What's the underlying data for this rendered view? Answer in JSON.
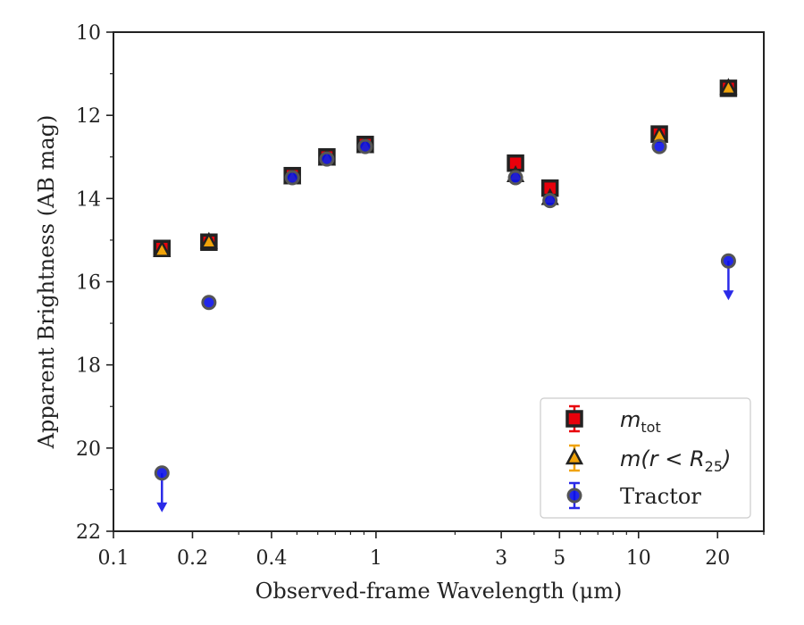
{
  "chart_data": {
    "type": "scatter",
    "xlabel": "Observed-frame Wavelength (μm)",
    "ylabel": "Apparent Brightness (AB mag)",
    "xscale": "log",
    "xlim": [
      0.1,
      30
    ],
    "ylim": [
      22,
      10
    ],
    "y_inverted": true,
    "xticks": [
      0.1,
      0.2,
      0.4,
      1,
      3,
      5,
      10,
      20
    ],
    "xtick_labels": [
      "0.1",
      "0.2",
      "0.4",
      "1",
      "3",
      "5",
      "10",
      "20"
    ],
    "yticks": [
      10,
      12,
      14,
      16,
      18,
      20,
      22
    ],
    "ytick_labels": [
      "10",
      "12",
      "14",
      "16",
      "18",
      "20",
      "22"
    ],
    "grid": false,
    "legend_position": "lower-right",
    "series": [
      {
        "name": "m_tot",
        "legend_label": {
          "main": "m",
          "sub": "tot",
          "rest": ""
        },
        "marker": "square",
        "color": "#e8000b",
        "edge_color": "#222222",
        "x": [
          0.153,
          0.231,
          0.48,
          0.65,
          0.91,
          3.4,
          4.6,
          12.0,
          22.0
        ],
        "y": [
          15.2,
          15.05,
          13.45,
          13.0,
          12.7,
          13.15,
          13.75,
          12.45,
          11.35
        ]
      },
      {
        "name": "m(r<R25)",
        "legend_label": {
          "main": "m(r < R",
          "sub": "25",
          "rest": ")"
        },
        "marker": "triangle",
        "color": "#f0a30a",
        "edge_color": "#222222",
        "x": [
          0.153,
          0.231,
          0.48,
          0.65,
          0.91,
          3.4,
          4.6,
          12.0,
          22.0
        ],
        "y": [
          15.25,
          15.05,
          13.5,
          13.05,
          12.75,
          13.45,
          14.0,
          12.5,
          11.35
        ]
      },
      {
        "name": "Tractor",
        "legend_label": {
          "main": "Tractor",
          "sub": "",
          "rest": ""
        },
        "marker": "circle",
        "color": "#0a10e8",
        "edge_color": "#555555",
        "x": [
          0.153,
          0.231,
          0.48,
          0.65,
          0.91,
          3.4,
          4.6,
          12.0,
          22.0
        ],
        "y": [
          20.6,
          16.5,
          13.5,
          13.05,
          12.75,
          13.5,
          14.05,
          12.75,
          15.5
        ],
        "upper_limits": [
          true,
          false,
          false,
          false,
          false,
          false,
          false,
          false,
          true
        ]
      }
    ]
  }
}
